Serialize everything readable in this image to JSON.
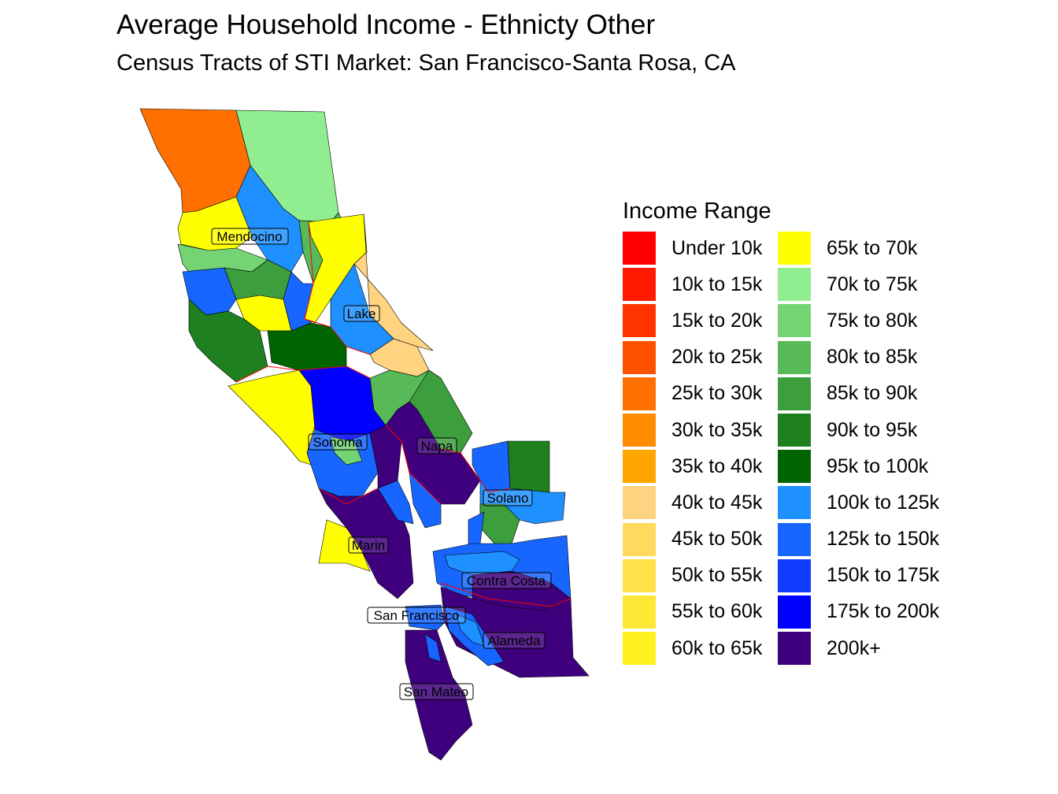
{
  "title": "Average Household Income - Ethnicty Other",
  "subtitle": "Census Tracts of STI Market: San Francisco-Santa Rosa, CA",
  "legend": {
    "title": "Income Range",
    "items": [
      {
        "label": "Under 10k",
        "color": "#FF0000"
      },
      {
        "label": "10k to 15k",
        "color": "#FF1A00"
      },
      {
        "label": "15k to 20k",
        "color": "#FF3300"
      },
      {
        "label": "20k to 25k",
        "color": "#FF5200"
      },
      {
        "label": "25k to 30k",
        "color": "#FF7000"
      },
      {
        "label": "30k to 35k",
        "color": "#FF8C00"
      },
      {
        "label": "35k to 40k",
        "color": "#FFA500"
      },
      {
        "label": "40k to 45k",
        "color": "#FFD37F"
      },
      {
        "label": "45k to 50k",
        "color": "#FFDA5E"
      },
      {
        "label": "50k to 55k",
        "color": "#FFE14A"
      },
      {
        "label": "55k to 60k",
        "color": "#FFE835"
      },
      {
        "label": "60k to 65k",
        "color": "#FFF01F"
      },
      {
        "label": "65k to 70k",
        "color": "#FFFF00"
      },
      {
        "label": "70k to 75k",
        "color": "#90EE90"
      },
      {
        "label": "75k to 80k",
        "color": "#74D474"
      },
      {
        "label": "80k to 85k",
        "color": "#58B958"
      },
      {
        "label": "85k to 90k",
        "color": "#3C9E3C"
      },
      {
        "label": "90k to 95k",
        "color": "#1F801F"
      },
      {
        "label": "95k to 100k",
        "color": "#006400"
      },
      {
        "label": "100k to 125k",
        "color": "#1E90FF"
      },
      {
        "label": "125k to 150k",
        "color": "#1766FF"
      },
      {
        "label": "150k to 175k",
        "color": "#0F3CFF"
      },
      {
        "label": "175k to 200k",
        "color": "#0000FF"
      },
      {
        "label": "200k+",
        "color": "#3F007D"
      }
    ]
  },
  "counties": [
    {
      "name": "Mendocino"
    },
    {
      "name": "Lake"
    },
    {
      "name": "Sonoma"
    },
    {
      "name": "Napa"
    },
    {
      "name": "Solano"
    },
    {
      "name": "Marin"
    },
    {
      "name": "Contra Costa"
    },
    {
      "name": "San Francisco"
    },
    {
      "name": "Alameda"
    },
    {
      "name": "San Mateo"
    }
  ]
}
